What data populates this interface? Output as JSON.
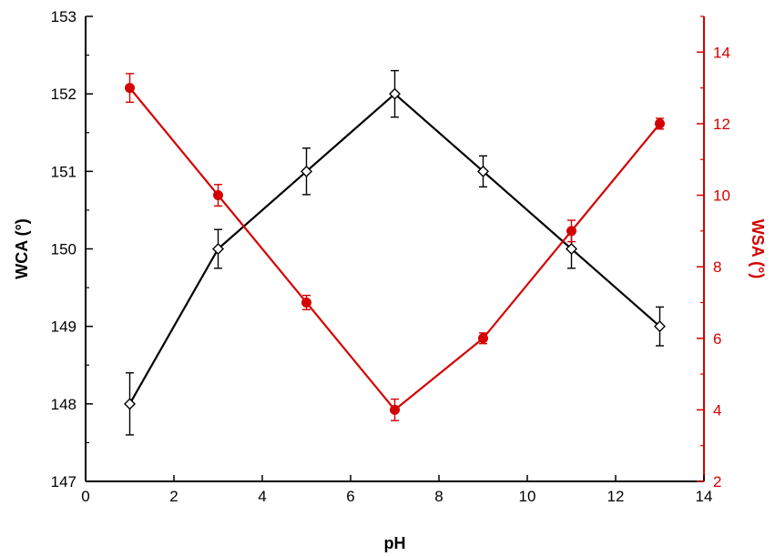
{
  "chart_data": {
    "type": "line",
    "xlabel": "pH",
    "ylabel_left": "WCA (°)",
    "ylabel_right": "WSA (°)",
    "xlim": [
      0,
      14
    ],
    "ylim_left": [
      147,
      153
    ],
    "ylim_right": [
      2,
      15
    ],
    "x_ticks": [
      0,
      2,
      4,
      6,
      8,
      10,
      12,
      14
    ],
    "y_left_ticks": [
      147,
      148,
      149,
      150,
      151,
      152,
      153
    ],
    "y_right_ticks": [
      2,
      4,
      6,
      8,
      10,
      12,
      14
    ],
    "grid": false,
    "series": [
      {
        "axis": "left",
        "color": "#000000",
        "marker": "open-diamond",
        "x": [
          1,
          3,
          5,
          7,
          9,
          11,
          13
        ],
        "values": [
          148,
          150,
          151,
          152,
          151,
          150,
          149
        ],
        "errors": [
          0.4,
          0.25,
          0.3,
          0.3,
          0.2,
          0.25,
          0.25
        ]
      },
      {
        "axis": "right",
        "color": "#d40000",
        "marker": "filled-circle",
        "x": [
          1,
          3,
          5,
          7,
          9,
          11,
          13
        ],
        "values": [
          13,
          10,
          7,
          4,
          6,
          9,
          12
        ],
        "errors": [
          0.4,
          0.3,
          0.2,
          0.3,
          0.15,
          0.3,
          0.15
        ]
      }
    ]
  },
  "colors": {
    "left_axis": "#000000",
    "right_axis": "#d40000"
  }
}
